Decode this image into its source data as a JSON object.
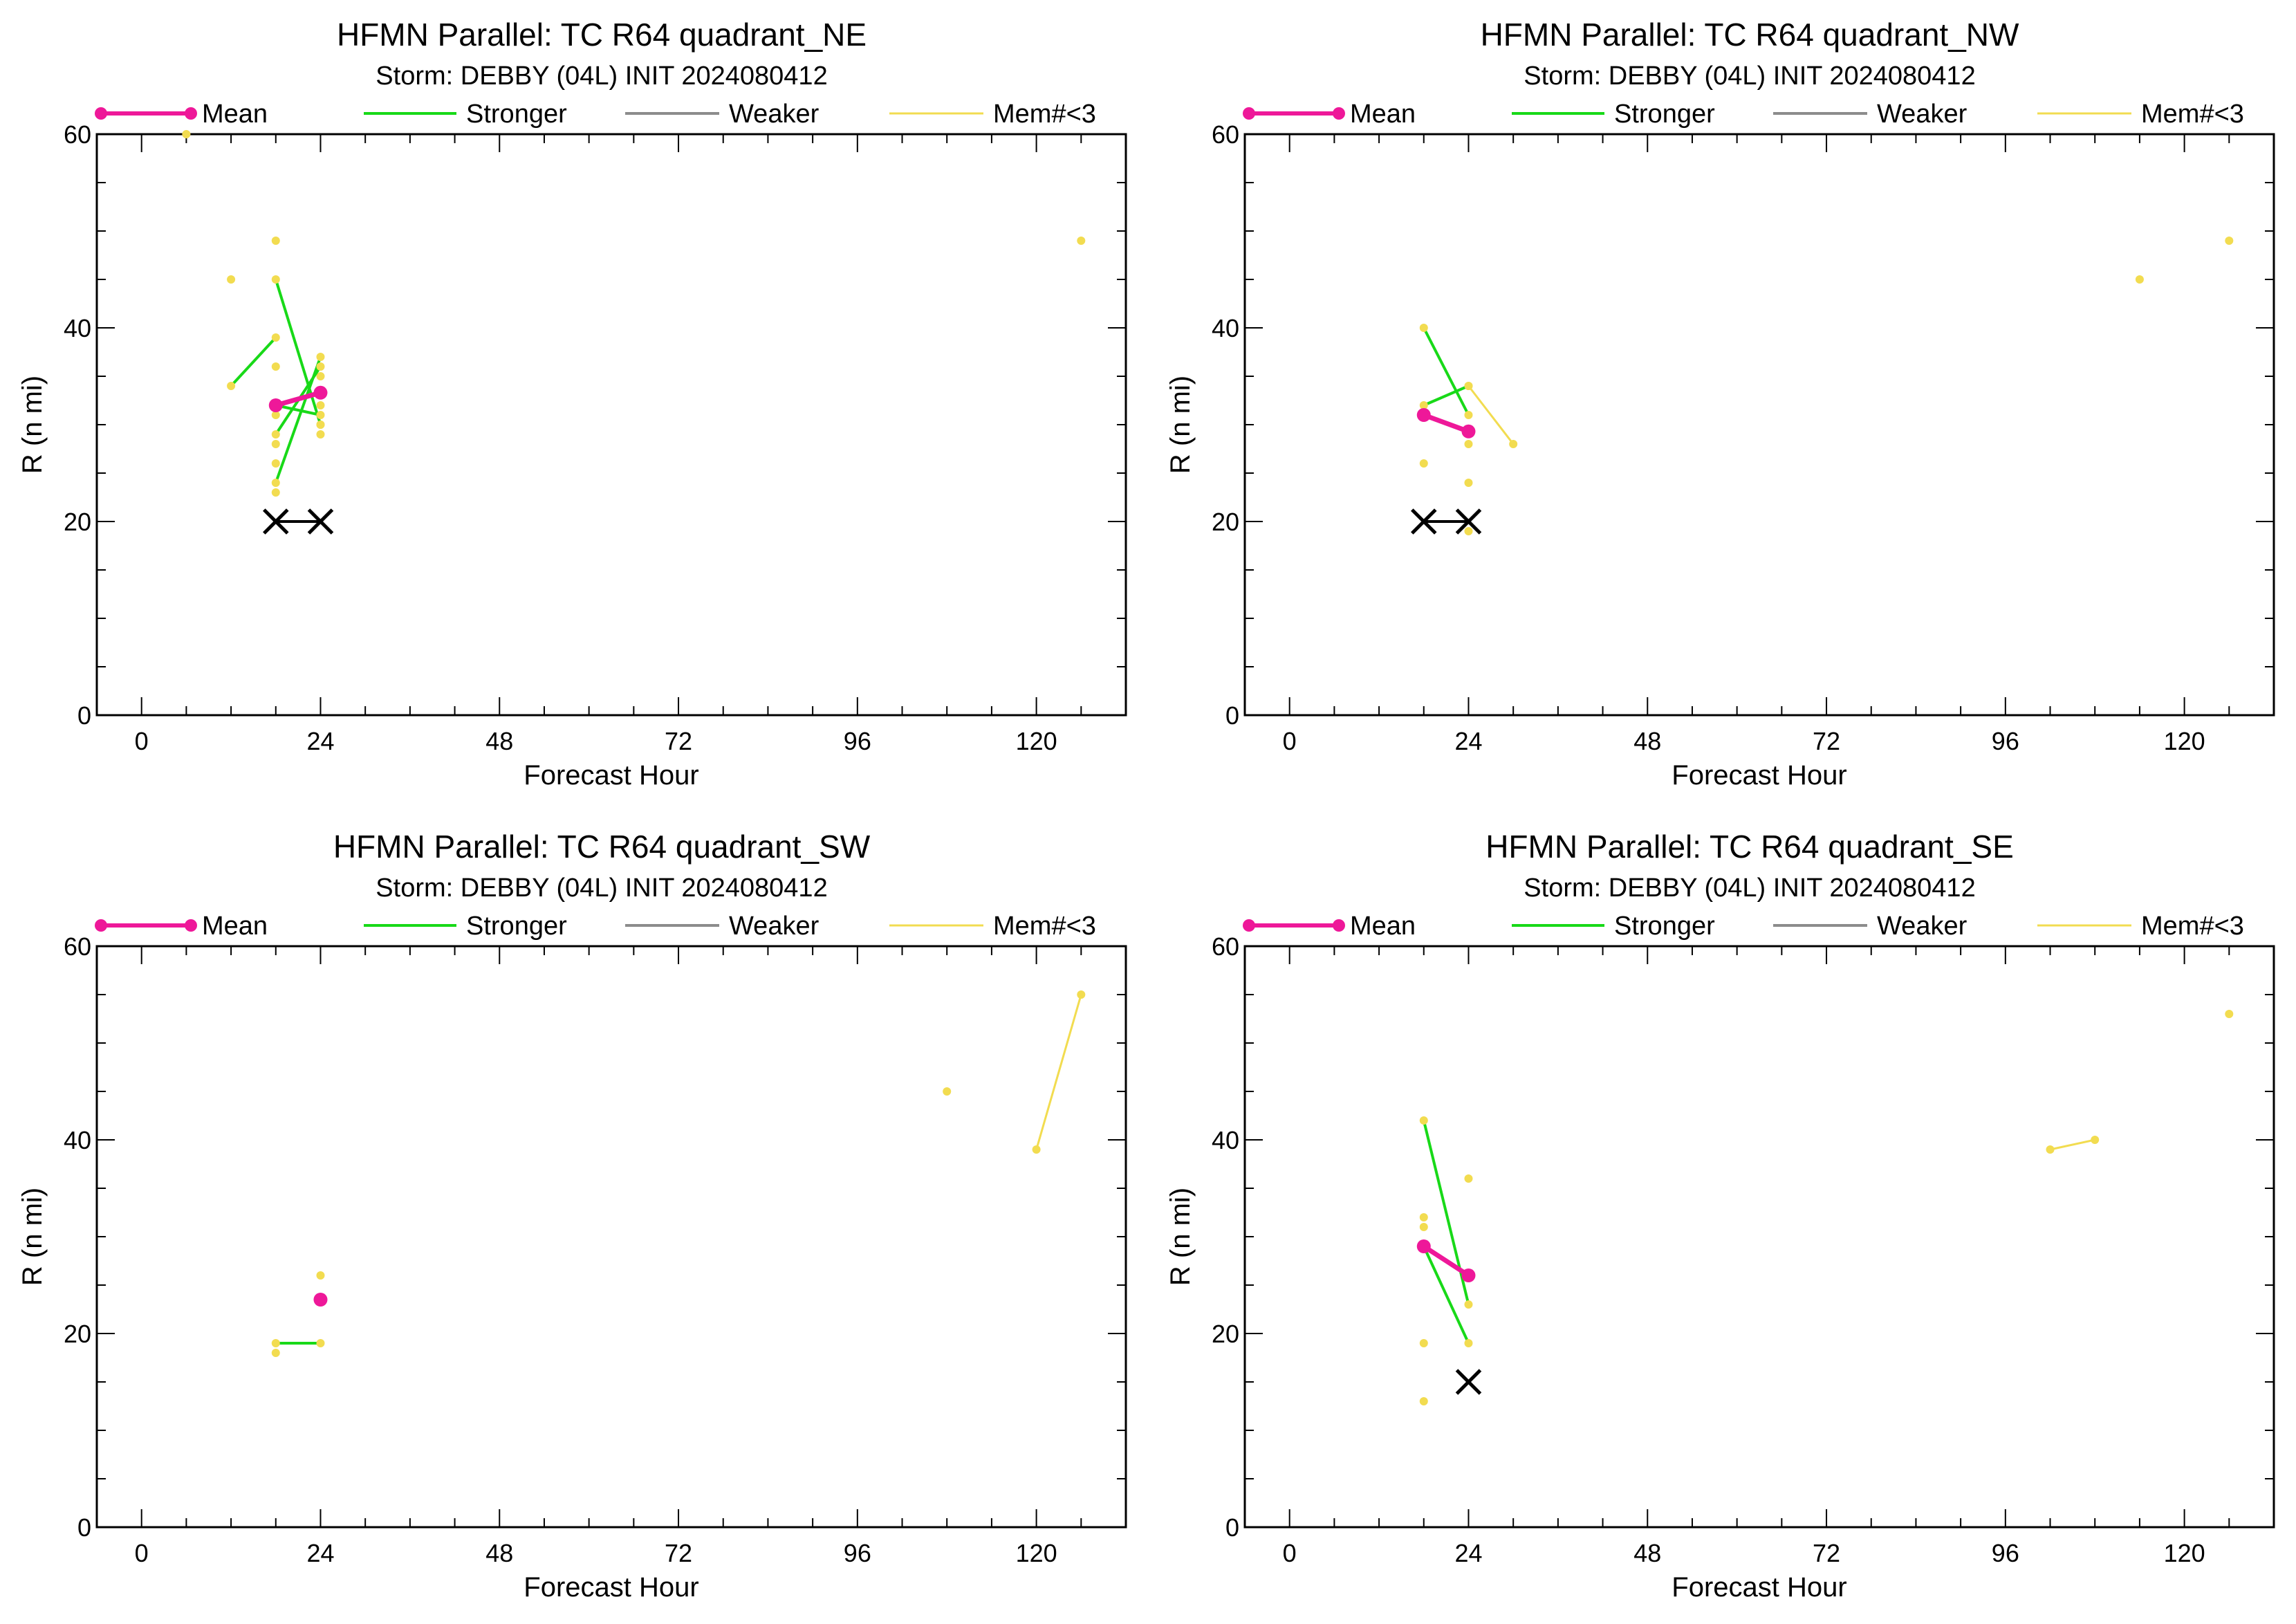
{
  "legend": {
    "mean": "Mean",
    "stronger": "Stronger",
    "weaker": "Weaker",
    "few": "Mem#<3",
    "colors": {
      "mean": "#ee1899",
      "stronger": "#18d918",
      "weaker": "#8c8c8c",
      "few": "#f2dc50",
      "best_track": "#000000"
    }
  },
  "chart_data": [
    {
      "type": "line",
      "title": "HFMN Parallel: TC  R64 quadrant_NE",
      "subtitle": "Storm: DEBBY (04L) INIT 2024080412",
      "xlabel": "Forecast Hour",
      "ylabel": "R (n mi)",
      "xlim": [
        -6,
        132
      ],
      "ylim": [
        0,
        60
      ],
      "xticks": [
        "0",
        "24",
        "48",
        "72",
        "96",
        "120"
      ],
      "yticks": [
        "0",
        "20",
        "40",
        "60"
      ],
      "grid": false,
      "legend_position": "top",
      "mean": [
        [
          18,
          32
        ],
        [
          24,
          33.3
        ]
      ],
      "stronger": [
        [
          [
            12,
            34
          ],
          [
            18,
            39
          ]
        ],
        [
          [
            18,
            45
          ],
          [
            24,
            30
          ]
        ],
        [
          [
            18,
            24
          ],
          [
            24,
            37
          ]
        ],
        [
          [
            18,
            29
          ],
          [
            24,
            36
          ]
        ],
        [
          [
            18,
            32
          ],
          [
            24,
            31
          ]
        ]
      ],
      "weaker": [],
      "few_lines": [],
      "few_points": [
        [
          6,
          60
        ],
        [
          12,
          45
        ],
        [
          18,
          49
        ],
        [
          18,
          36
        ],
        [
          18,
          31
        ],
        [
          18,
          28
        ],
        [
          18,
          26
        ],
        [
          18,
          23
        ],
        [
          24,
          35
        ],
        [
          24,
          32
        ],
        [
          24,
          30
        ],
        [
          24,
          29
        ],
        [
          126,
          49
        ]
      ],
      "best_track": [
        [
          18,
          20
        ],
        [
          24,
          20
        ]
      ]
    },
    {
      "type": "line",
      "title": "HFMN Parallel: TC  R64 quadrant_NW",
      "subtitle": "Storm: DEBBY (04L) INIT 2024080412",
      "xlabel": "Forecast Hour",
      "ylabel": "R (n mi)",
      "xlim": [
        -6,
        132
      ],
      "ylim": [
        0,
        60
      ],
      "xticks": [
        "0",
        "24",
        "48",
        "72",
        "96",
        "120"
      ],
      "yticks": [
        "0",
        "20",
        "40",
        "60"
      ],
      "grid": false,
      "legend_position": "top",
      "mean": [
        [
          18,
          31
        ],
        [
          24,
          29.3
        ]
      ],
      "stronger": [
        [
          [
            18,
            40
          ],
          [
            24,
            31
          ]
        ],
        [
          [
            18,
            32
          ],
          [
            24,
            34
          ]
        ]
      ],
      "weaker": [],
      "few_lines": [
        [
          [
            24,
            34
          ],
          [
            30,
            28
          ]
        ]
      ],
      "few_points": [
        [
          18,
          26
        ],
        [
          24,
          28
        ],
        [
          24,
          24
        ],
        [
          24,
          19
        ],
        [
          114,
          45
        ],
        [
          126,
          49
        ]
      ],
      "best_track": [
        [
          18,
          20
        ],
        [
          24,
          20
        ]
      ]
    },
    {
      "type": "line",
      "title": "HFMN Parallel: TC  R64 quadrant_SW",
      "subtitle": "Storm: DEBBY (04L) INIT 2024080412",
      "xlabel": "Forecast Hour",
      "ylabel": "R (n mi)",
      "xlim": [
        -6,
        132
      ],
      "ylim": [
        0,
        60
      ],
      "xticks": [
        "0",
        "24",
        "48",
        "72",
        "96",
        "120"
      ],
      "yticks": [
        "0",
        "20",
        "40",
        "60"
      ],
      "grid": false,
      "legend_position": "top",
      "mean": [
        [
          24,
          23.5
        ]
      ],
      "stronger": [
        [
          [
            18,
            19
          ],
          [
            24,
            19
          ]
        ]
      ],
      "weaker": [],
      "few_lines": [
        [
          [
            120,
            39
          ],
          [
            126,
            55
          ]
        ]
      ],
      "few_points": [
        [
          18,
          18
        ],
        [
          24,
          26
        ],
        [
          108,
          45
        ]
      ],
      "best_track": []
    },
    {
      "type": "line",
      "title": "HFMN Parallel: TC  R64 quadrant_SE",
      "subtitle": "Storm: DEBBY (04L) INIT 2024080412",
      "xlabel": "Forecast Hour",
      "ylabel": "R (n mi)",
      "xlim": [
        -6,
        132
      ],
      "ylim": [
        0,
        60
      ],
      "xticks": [
        "0",
        "24",
        "48",
        "72",
        "96",
        "120"
      ],
      "yticks": [
        "0",
        "20",
        "40",
        "60"
      ],
      "grid": false,
      "legend_position": "top",
      "mean": [
        [
          18,
          29
        ],
        [
          24,
          26
        ]
      ],
      "stronger": [
        [
          [
            18,
            42
          ],
          [
            24,
            23
          ]
        ],
        [
          [
            18,
            29
          ],
          [
            24,
            19
          ]
        ]
      ],
      "weaker": [],
      "few_lines": [
        [
          [
            102,
            39
          ],
          [
            108,
            40
          ]
        ]
      ],
      "few_points": [
        [
          18,
          32
        ],
        [
          18,
          31
        ],
        [
          18,
          19
        ],
        [
          18,
          13
        ],
        [
          24,
          36
        ],
        [
          126,
          53
        ]
      ],
      "best_track": [
        [
          24,
          15
        ]
      ]
    }
  ]
}
